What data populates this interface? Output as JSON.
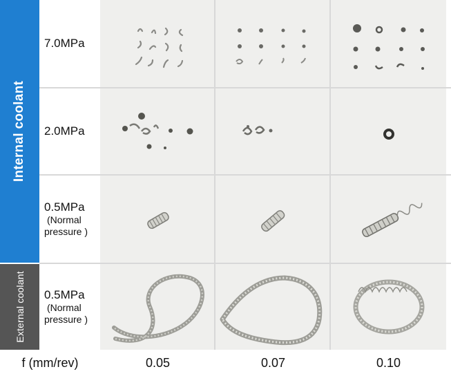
{
  "band_internal": "Internal coolant",
  "band_external": "External coolant",
  "rows": [
    {
      "main": "7.0MPa"
    },
    {
      "main": "2.0MPa"
    },
    {
      "main": "0.5MPa",
      "sub1": "(Normal",
      "sub2": "pressure )"
    },
    {
      "main": "0.5MPa",
      "sub1": "(Normal",
      "sub2": "pressure )"
    }
  ],
  "x_axis_label": "f (mm/rev)",
  "x_ticks": [
    "0.05",
    "0.07",
    "0.10"
  ],
  "colors": {
    "internal_band": "#1f7fd1",
    "external_band": "#555555",
    "cell_bg": "#efefed"
  },
  "cells": [
    [
      "small-curled-chips-photo",
      "small-dot-chips-photo",
      "small-dot-chips-photo"
    ],
    [
      "crushed-chips-photo",
      "crushed-chips-photo",
      "single-ring-chip-photo"
    ],
    [
      "short-coil-chip-photo",
      "short-coil-chip-photo",
      "spiral-coil-chip-photo"
    ],
    [
      "long-loop-chip-photo",
      "long-loop-chip-photo",
      "long-spiral-loop-chip-photo"
    ]
  ]
}
